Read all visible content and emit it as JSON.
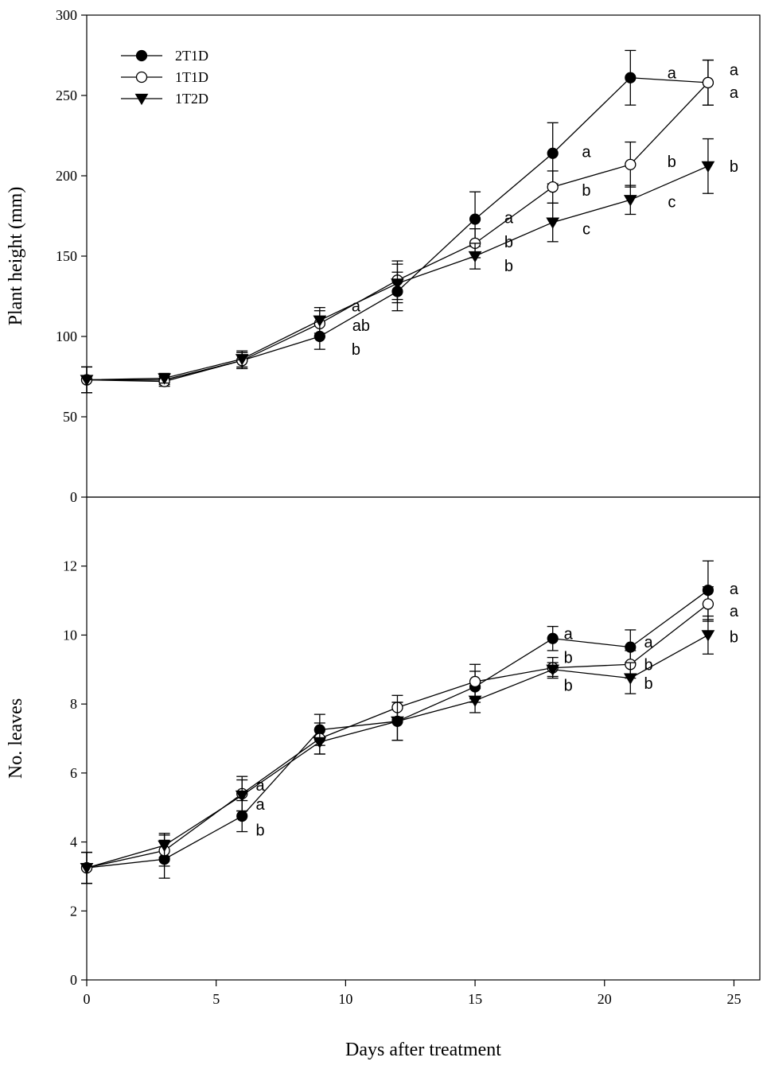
{
  "chart_data": {
    "type": "line",
    "shared_x": {
      "label": "Days after treatment",
      "lim": [
        0,
        26
      ],
      "ticks": [
        0,
        5,
        10,
        15,
        20,
        25
      ],
      "tick_labels": [
        "0",
        "5",
        "10",
        "15",
        "20",
        "25"
      ]
    },
    "legend": {
      "placement": "top-left",
      "entries": [
        {
          "name": "2T1D",
          "marker": "filled-circle"
        },
        {
          "name": "1T1D",
          "marker": "open-circle"
        },
        {
          "name": "1T2D",
          "marker": "filled-triangle-down"
        }
      ]
    },
    "panels": [
      {
        "ylabel": "Plant height (mm)",
        "ylim": [
          0,
          300
        ],
        "yticks": [
          0,
          50,
          100,
          150,
          200,
          250,
          300
        ],
        "ytick_labels": [
          "0",
          "50",
          "100",
          "150",
          "200",
          "250",
          "300"
        ],
        "x": [
          0,
          3,
          6,
          9,
          12,
          15,
          18,
          21,
          24
        ],
        "series": [
          {
            "name": "2T1D",
            "marker": "filled-circle",
            "values": [
              73,
              73,
              85,
              100,
              128,
              173,
              214,
              261,
              258
            ],
            "errors": [
              8,
              3,
              5,
              8,
              12,
              17,
              19,
              17,
              14
            ]
          },
          {
            "name": "1T1D",
            "marker": "open-circle",
            "values": [
              73,
              72,
              85,
              108,
              135,
              158,
              193,
              207,
              258
            ],
            "errors": [
              8,
              3,
              5,
              8,
              12,
              9,
              10,
              14,
              14
            ]
          },
          {
            "name": "1T2D",
            "marker": "filled-triangle-down",
            "values": [
              73,
              74,
              86,
              110,
              133,
              150,
              171,
              185,
              206
            ],
            "errors": [
              8,
              3,
              5,
              8,
              12,
              8,
              12,
              9,
              17
            ]
          }
        ],
        "annotations": [
          {
            "x": 10.4,
            "y": 119,
            "text": "a"
          },
          {
            "x": 10.6,
            "y": 107,
            "text": "ab"
          },
          {
            "x": 10.4,
            "y": 92,
            "text": "b"
          },
          {
            "x": 16.3,
            "y": 174,
            "text": "a"
          },
          {
            "x": 16.3,
            "y": 159,
            "text": "b"
          },
          {
            "x": 16.3,
            "y": 144,
            "text": "b"
          },
          {
            "x": 19.3,
            "y": 215,
            "text": "a"
          },
          {
            "x": 19.3,
            "y": 191,
            "text": "b"
          },
          {
            "x": 19.3,
            "y": 167,
            "text": "c"
          },
          {
            "x": 22.6,
            "y": 264,
            "text": "a"
          },
          {
            "x": 22.6,
            "y": 209,
            "text": "b"
          },
          {
            "x": 22.6,
            "y": 184,
            "text": "c"
          },
          {
            "x": 25.0,
            "y": 266,
            "text": "a"
          },
          {
            "x": 25.0,
            "y": 252,
            "text": "a"
          },
          {
            "x": 25.0,
            "y": 206,
            "text": "b"
          }
        ]
      },
      {
        "ylabel": "No. leaves",
        "ylim": [
          0,
          14
        ],
        "yticks": [
          0,
          2,
          4,
          6,
          8,
          10,
          12
        ],
        "ytick_labels": [
          "0",
          "2",
          "4",
          "6",
          "8",
          "10",
          "12"
        ],
        "x": [
          0,
          3,
          6,
          9,
          12,
          15,
          18,
          21,
          24
        ],
        "series": [
          {
            "name": "2T1D",
            "marker": "filled-circle",
            "values": [
              3.25,
              3.5,
              4.75,
              7.25,
              7.5,
              8.5,
              9.9,
              9.65,
              11.3
            ],
            "errors": [
              0.45,
              0.55,
              0.45,
              0.45,
              0.55,
              0.45,
              0.35,
              0.5,
              0.85
            ]
          },
          {
            "name": "1T1D",
            "marker": "open-circle",
            "values": [
              3.25,
              3.75,
              5.4,
              7.0,
              7.9,
              8.65,
              9.05,
              9.15,
              10.9
            ],
            "errors": [
              0.45,
              0.45,
              0.5,
              0.45,
              0.35,
              0.5,
              0.3,
              0.4,
              0.5
            ]
          },
          {
            "name": "1T2D",
            "marker": "filled-triangle-down",
            "values": [
              3.25,
              3.9,
              5.35,
              6.9,
              7.5,
              8.1,
              9.0,
              8.75,
              10.0
            ],
            "errors": [
              0.45,
              0.35,
              0.45,
              0.35,
              0.55,
              0.35,
              0.2,
              0.45,
              0.55
            ]
          }
        ],
        "annotations": [
          {
            "x": 6.7,
            "y": 5.65,
            "text": "a"
          },
          {
            "x": 6.7,
            "y": 5.1,
            "text": "a"
          },
          {
            "x": 6.7,
            "y": 4.35,
            "text": "b"
          },
          {
            "x": 18.6,
            "y": 10.05,
            "text": "a"
          },
          {
            "x": 18.6,
            "y": 9.35,
            "text": "b"
          },
          {
            "x": 18.6,
            "y": 8.55,
            "text": "b"
          },
          {
            "x": 21.7,
            "y": 9.8,
            "text": "a"
          },
          {
            "x": 21.7,
            "y": 9.15,
            "text": "b"
          },
          {
            "x": 21.7,
            "y": 8.6,
            "text": "b"
          },
          {
            "x": 25.0,
            "y": 11.35,
            "text": "a"
          },
          {
            "x": 25.0,
            "y": 10.7,
            "text": "a"
          },
          {
            "x": 25.0,
            "y": 9.95,
            "text": "b"
          }
        ]
      }
    ]
  }
}
